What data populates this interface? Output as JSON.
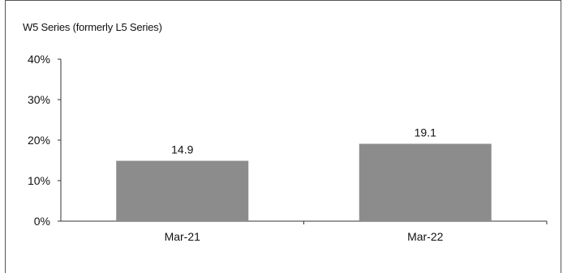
{
  "chart_data": {
    "type": "bar",
    "title": "W5 Series (formerly L5 Series)",
    "categories": [
      "Mar-21",
      "Mar-22"
    ],
    "values": [
      14.9,
      19.1
    ],
    "data_labels": [
      "14.9",
      "19.1"
    ],
    "ylim": [
      0,
      40
    ],
    "yticks": [
      0,
      10,
      20,
      30,
      40
    ],
    "ytick_labels": [
      "0%",
      "10%",
      "20%",
      "30%",
      "40%"
    ],
    "xlabel": "",
    "ylabel": "",
    "bar_color": "#8c8c8c",
    "grid": false
  }
}
